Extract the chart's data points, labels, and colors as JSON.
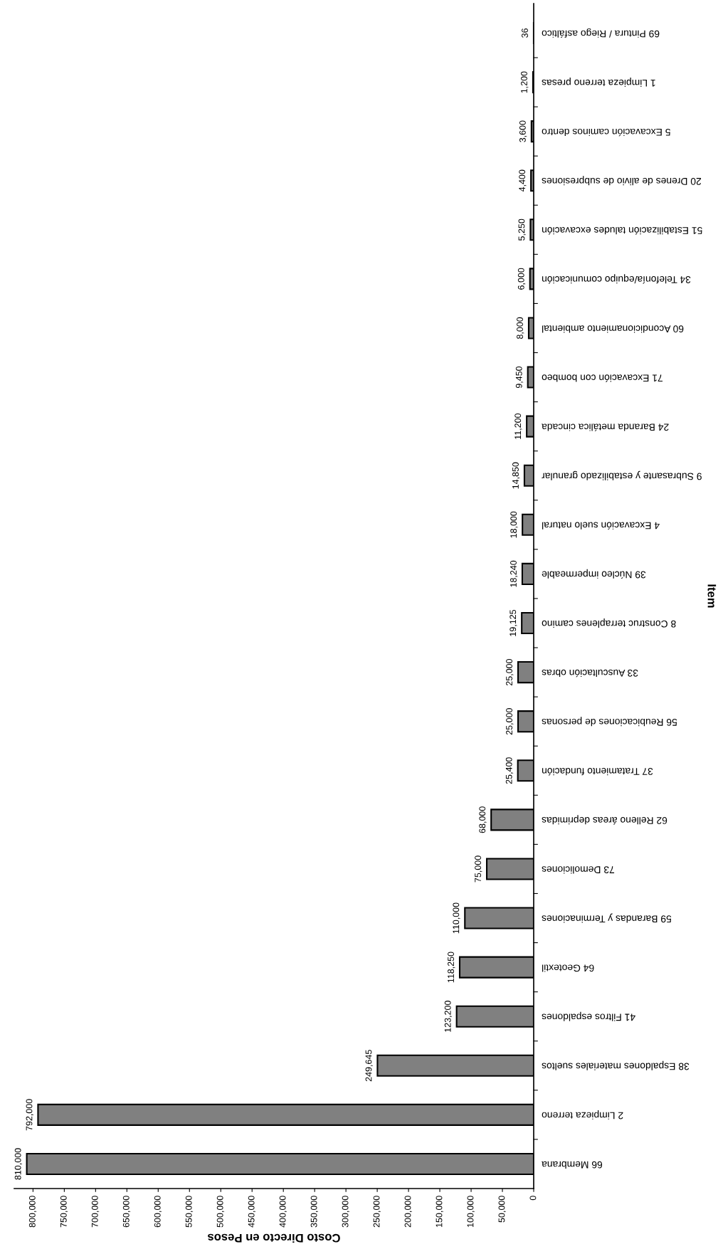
{
  "chart_data": {
    "type": "bar",
    "orientation": "horizontal",
    "xlabel": "Costo Directo en Pesos",
    "ylabel": "Item",
    "categories": [
      "69 Pintura / Riego asfáltico",
      "1 Limpieza terreno presas",
      "5 Excavación caminos dentro",
      "20 Drenes de alivio de subpresiones",
      "51 Estabilización taludes excavación",
      "34 Telefonía/equipo comunicación",
      "60 Acondicionamiento ambiental",
      "71 Excavación con bombeo",
      "24 Baranda metálica cincada",
      "9 Subrasante y estabilizado granular",
      "4 Excavación suelo natural",
      "39 Núcleo impermeable",
      "8 Construc terraplenes camino",
      "33 Auscultación obras",
      "56 Reubicaciones de personas",
      "37 Tratamiento fundación",
      "62 Relleno áreas deprimidas",
      "73 Demoliciones",
      "59 Barandas y Terminaciones",
      "64 Geotextil",
      "41 Filtros espaldones",
      "38 Espaldones materiales sueltos",
      "2 Limpieza terreno",
      "66 Membrana"
    ],
    "values": [
      36,
      1200,
      3600,
      4400,
      5250,
      6000,
      8000,
      9450,
      11200,
      14850,
      18000,
      18240,
      19125,
      25000,
      25000,
      25400,
      68000,
      75000,
      110000,
      118250,
      123200,
      249645,
      792000,
      810000
    ],
    "value_labels": [
      "36",
      "1,200",
      "3,600",
      "4,400",
      "5,250",
      "6,000",
      "8,000",
      "9,450",
      "11,200",
      "14,850",
      "18,000",
      "18,240",
      "19,125",
      "25,000",
      "25,000",
      "25,400",
      "68,000",
      "75,000",
      "110,000",
      "118,250",
      "123,200",
      "249,645",
      "792,000",
      "810,000"
    ],
    "color": "#808080",
    "xlim": [
      830000,
      0
    ],
    "xticks": [
      {
        "value": 0,
        "label": "0"
      },
      {
        "value": 50000,
        "label": "50,000"
      },
      {
        "value": 100000,
        "label": "100,000"
      },
      {
        "value": 150000,
        "label": "150,000"
      },
      {
        "value": 200000,
        "label": "200,000"
      },
      {
        "value": 250000,
        "label": "250,000"
      },
      {
        "value": 300000,
        "label": "300,000"
      },
      {
        "value": 350000,
        "label": "350,000"
      },
      {
        "value": 400000,
        "label": "400,000"
      },
      {
        "value": 450000,
        "label": "450,000"
      },
      {
        "value": 500000,
        "label": "500,000"
      },
      {
        "value": 550000,
        "label": "550,000"
      },
      {
        "value": 600000,
        "label": "600,000"
      },
      {
        "value": 650000,
        "label": "650,000"
      },
      {
        "value": 700000,
        "label": "700,000"
      },
      {
        "value": 750000,
        "label": "750,000"
      },
      {
        "value": 800000,
        "label": "800,000"
      }
    ],
    "grid": false,
    "legend": false
  }
}
